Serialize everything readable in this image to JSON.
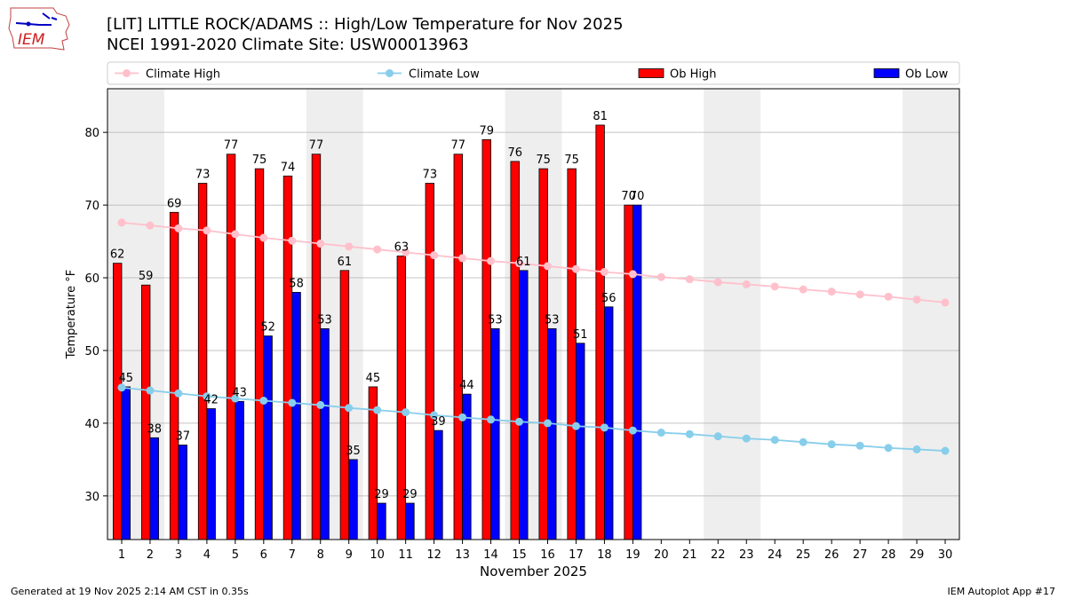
{
  "header": {
    "title_line1": "[LIT] LITTLE ROCK/ADAMS :: High/Low Temperature for Nov 2025",
    "title_line2": "NCEI 1991-2020 Climate Site: USW00013963"
  },
  "logo": {
    "text": "IEM"
  },
  "footer": {
    "left": "Generated at 19 Nov 2025 2:14 AM CST in 0.35s",
    "right": "IEM Autoplot App #17"
  },
  "colors": {
    "ob_high": "#ff0000",
    "ob_low": "#0000ff",
    "climate_high": "#ffc0cb",
    "climate_low": "#87ceeb",
    "weekend_shade": "#eeeeee",
    "grid": "#b0b0b0"
  },
  "chart_data": {
    "type": "bar",
    "xlabel": "November 2025",
    "ylabel": "Temperature °F",
    "xlim": [
      0.5,
      30.5
    ],
    "ylim": [
      24,
      86
    ],
    "yticks": [
      30,
      40,
      50,
      60,
      70,
      80
    ],
    "grid": "horizontal",
    "legend_position": "top",
    "days": [
      1,
      2,
      3,
      4,
      5,
      6,
      7,
      8,
      9,
      10,
      11,
      12,
      13,
      14,
      15,
      16,
      17,
      18,
      19,
      20,
      21,
      22,
      23,
      24,
      25,
      26,
      27,
      28,
      29,
      30
    ],
    "shaded_days": [
      [
        1,
        2
      ],
      [
        8,
        9
      ],
      [
        15,
        16
      ],
      [
        22,
        23
      ],
      [
        29,
        30
      ]
    ],
    "series": [
      {
        "name": "Climate High",
        "kind": "line",
        "values": [
          67.6,
          67.2,
          66.8,
          66.5,
          66.0,
          65.5,
          65.1,
          64.7,
          64.3,
          63.9,
          63.5,
          63.1,
          62.7,
          62.3,
          62.0,
          61.6,
          61.2,
          60.8,
          60.5,
          60.1,
          59.8,
          59.4,
          59.1,
          58.8,
          58.4,
          58.1,
          57.7,
          57.4,
          57.0,
          56.6
        ]
      },
      {
        "name": "Climate Low",
        "kind": "line",
        "values": [
          44.9,
          44.5,
          44.1,
          43.7,
          43.4,
          43.1,
          42.8,
          42.5,
          42.1,
          41.8,
          41.5,
          41.1,
          40.8,
          40.5,
          40.2,
          40.0,
          39.6,
          39.4,
          39.0,
          38.7,
          38.5,
          38.2,
          37.9,
          37.7,
          37.4,
          37.1,
          36.9,
          36.6,
          36.4,
          36.2
        ]
      },
      {
        "name": "Ob High",
        "kind": "bar",
        "values": [
          62,
          59,
          69,
          73,
          77,
          75,
          74,
          77,
          61,
          45,
          63,
          73,
          77,
          79,
          76,
          75,
          75,
          81,
          70
        ]
      },
      {
        "name": "Ob Low",
        "kind": "bar",
        "values": [
          45,
          38,
          37,
          42,
          43,
          52,
          58,
          53,
          35,
          29,
          29,
          39,
          44,
          53,
          61,
          53,
          51,
          56,
          70
        ]
      }
    ]
  }
}
